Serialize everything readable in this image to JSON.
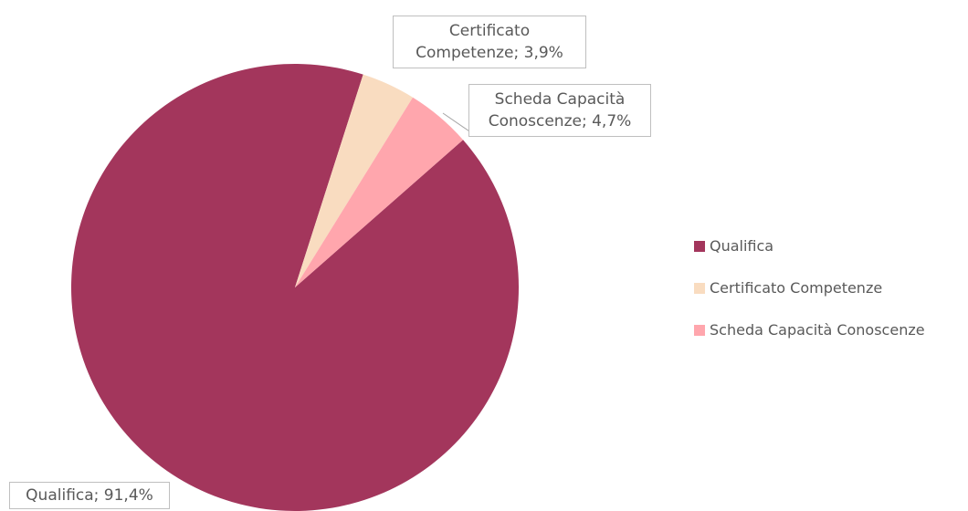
{
  "chart_data": {
    "type": "pie",
    "categories": [
      "Qualifica",
      "Certificato Competenze",
      "Scheda Capacità Conoscenze"
    ],
    "values": [
      91.4,
      3.9,
      4.7
    ],
    "value_labels": [
      "Qualifica; 91,4%",
      "Certificato Competenze; 3,9%",
      "Scheda Capacità Conoscenze; 4,7%"
    ],
    "colors": [
      "#a3365c",
      "#f9dcc0",
      "#ffa6ad"
    ],
    "legend": "right"
  }
}
